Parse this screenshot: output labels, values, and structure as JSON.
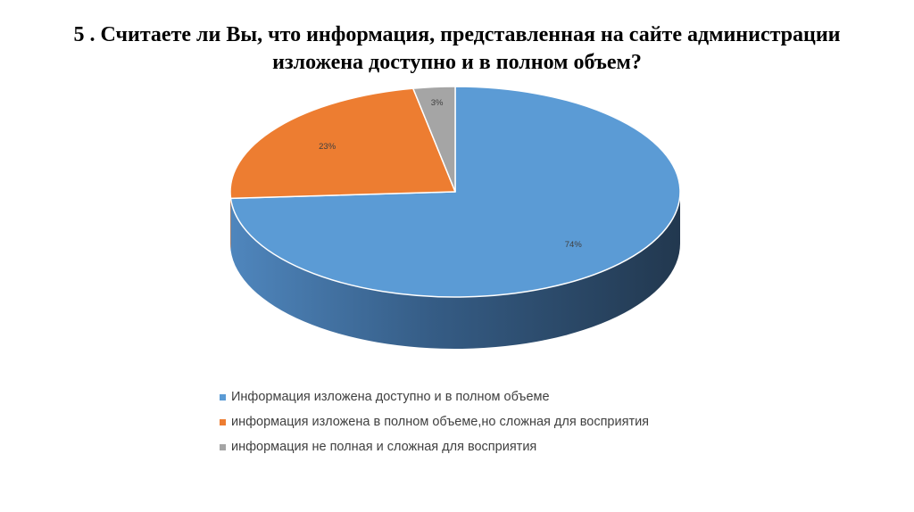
{
  "title": {
    "line1": "5 . Считаете ли Вы, что информация, представленная на сайте администрации",
    "line2": "изложена доступно и в полном объем?"
  },
  "chart_data": {
    "type": "pie",
    "three_d": true,
    "title": "5 . Считаете ли Вы, что информация, представленная на сайте администрации изложена доступно и в полном объем?",
    "legend_position": "bottom",
    "series": [
      {
        "name": "Информация изложена доступно и в полном объеме",
        "value": 74,
        "label": "74%",
        "color": "#5B9BD5"
      },
      {
        "name": "информация изложена в полном объеме,но сложная для восприятия",
        "value": 23,
        "label": "23%",
        "color": "#ED7D31"
      },
      {
        "name": "информация не полная и сложная для восприятия",
        "value": 3,
        "label": "3%",
        "color": "#A5A5A5"
      }
    ]
  }
}
